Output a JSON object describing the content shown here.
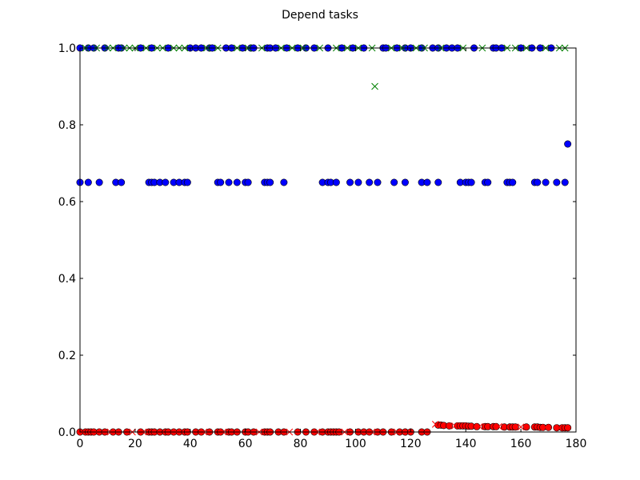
{
  "chart_data": {
    "type": "scatter",
    "title": "Depend tasks",
    "xlabel": "",
    "ylabel": "",
    "xlim": [
      0,
      180
    ],
    "ylim": [
      0.0,
      1.0
    ],
    "xticks": [
      "0",
      "20",
      "40",
      "60",
      "80",
      "100",
      "120",
      "140",
      "160",
      "180"
    ],
    "yticks": [
      "0.0",
      "0.2",
      "0.4",
      "0.6",
      "0.8",
      "1.0"
    ],
    "grid": false,
    "legend": "none",
    "series": [
      {
        "marker": "circle",
        "color": "#0000ff",
        "points": [
          [
            0,
            1.0
          ],
          [
            3,
            1.0
          ],
          [
            5,
            1.0
          ],
          [
            9,
            1.0
          ],
          [
            14,
            1.0
          ],
          [
            15,
            1.0
          ],
          [
            22,
            1.0
          ],
          [
            26,
            1.0
          ],
          [
            32,
            1.0
          ],
          [
            40,
            1.0
          ],
          [
            42,
            1.0
          ],
          [
            44,
            1.0
          ],
          [
            47,
            1.0
          ],
          [
            48,
            1.0
          ],
          [
            53,
            1.0
          ],
          [
            55,
            1.0
          ],
          [
            59,
            1.0
          ],
          [
            62,
            1.0
          ],
          [
            63,
            1.0
          ],
          [
            68,
            1.0
          ],
          [
            69,
            1.0
          ],
          [
            71,
            1.0
          ],
          [
            75,
            1.0
          ],
          [
            79,
            1.0
          ],
          [
            82,
            1.0
          ],
          [
            85,
            1.0
          ],
          [
            90,
            1.0
          ],
          [
            95,
            1.0
          ],
          [
            99,
            1.0
          ],
          [
            103,
            1.0
          ],
          [
            110,
            1.0
          ],
          [
            111,
            1.0
          ],
          [
            115,
            1.0
          ],
          [
            118,
            1.0
          ],
          [
            120,
            1.0
          ],
          [
            124,
            1.0
          ],
          [
            128,
            1.0
          ],
          [
            130,
            1.0
          ],
          [
            133,
            1.0
          ],
          [
            135,
            1.0
          ],
          [
            137,
            1.0
          ],
          [
            143,
            1.0
          ],
          [
            150,
            1.0
          ],
          [
            151,
            1.0
          ],
          [
            153,
            1.0
          ],
          [
            160,
            1.0
          ],
          [
            164,
            1.0
          ],
          [
            167,
            1.0
          ],
          [
            171,
            1.0
          ],
          [
            0,
            0.65
          ],
          [
            3,
            0.65
          ],
          [
            7,
            0.65
          ],
          [
            13,
            0.65
          ],
          [
            15,
            0.65
          ],
          [
            25,
            0.65
          ],
          [
            26,
            0.65
          ],
          [
            27,
            0.65
          ],
          [
            29,
            0.65
          ],
          [
            31,
            0.65
          ],
          [
            34,
            0.65
          ],
          [
            36,
            0.65
          ],
          [
            38,
            0.65
          ],
          [
            39,
            0.65
          ],
          [
            50,
            0.65
          ],
          [
            51,
            0.65
          ],
          [
            54,
            0.65
          ],
          [
            57,
            0.65
          ],
          [
            60,
            0.65
          ],
          [
            61,
            0.65
          ],
          [
            67,
            0.65
          ],
          [
            68,
            0.65
          ],
          [
            69,
            0.65
          ],
          [
            74,
            0.65
          ],
          [
            88,
            0.65
          ],
          [
            90,
            0.65
          ],
          [
            91,
            0.65
          ],
          [
            93,
            0.65
          ],
          [
            98,
            0.65
          ],
          [
            101,
            0.65
          ],
          [
            105,
            0.65
          ],
          [
            108,
            0.65
          ],
          [
            114,
            0.65
          ],
          [
            118,
            0.65
          ],
          [
            124,
            0.65
          ],
          [
            126,
            0.65
          ],
          [
            130,
            0.65
          ],
          [
            138,
            0.65
          ],
          [
            140,
            0.65
          ],
          [
            141,
            0.65
          ],
          [
            142,
            0.65
          ],
          [
            147,
            0.65
          ],
          [
            148,
            0.65
          ],
          [
            155,
            0.65
          ],
          [
            156,
            0.65
          ],
          [
            157,
            0.65
          ],
          [
            165,
            0.65
          ],
          [
            166,
            0.65
          ],
          [
            169,
            0.65
          ],
          [
            173,
            0.65
          ],
          [
            176,
            0.65
          ],
          [
            177,
            0.75
          ]
        ]
      },
      {
        "marker": "x",
        "color": "#008000",
        "points": [
          [
            2,
            1.0
          ],
          [
            6,
            1.0
          ],
          [
            10,
            1.0
          ],
          [
            12,
            1.0
          ],
          [
            16,
            1.0
          ],
          [
            18,
            1.0
          ],
          [
            20,
            1.0
          ],
          [
            24,
            1.0
          ],
          [
            28,
            1.0
          ],
          [
            30,
            1.0
          ],
          [
            34,
            1.0
          ],
          [
            36,
            1.0
          ],
          [
            38,
            1.0
          ],
          [
            46,
            1.0
          ],
          [
            50,
            1.0
          ],
          [
            57,
            1.0
          ],
          [
            61,
            1.0
          ],
          [
            66,
            1.0
          ],
          [
            73,
            1.0
          ],
          [
            77,
            1.0
          ],
          [
            81,
            1.0
          ],
          [
            87,
            1.0
          ],
          [
            93,
            1.0
          ],
          [
            97,
            1.0
          ],
          [
            101,
            1.0
          ],
          [
            106,
            1.0
          ],
          [
            113,
            1.0
          ],
          [
            117,
            1.0
          ],
          [
            122,
            1.0
          ],
          [
            125,
            1.0
          ],
          [
            131,
            1.0
          ],
          [
            139,
            1.0
          ],
          [
            146,
            1.0
          ],
          [
            155,
            1.0
          ],
          [
            158,
            1.0
          ],
          [
            162,
            1.0
          ],
          [
            169,
            1.0
          ],
          [
            174,
            1.0
          ],
          [
            176,
            1.0
          ],
          [
            107,
            0.9
          ]
        ]
      },
      {
        "marker": "circle",
        "color": "#ff0000",
        "points": [
          [
            0,
            0.0
          ],
          [
            2,
            0.0
          ],
          [
            3,
            0.0
          ],
          [
            4,
            0.0
          ],
          [
            5,
            0.0
          ],
          [
            7,
            0.0
          ],
          [
            9,
            0.0
          ],
          [
            12,
            0.0
          ],
          [
            14,
            0.0
          ],
          [
            17,
            0.0
          ],
          [
            22,
            0.0
          ],
          [
            25,
            0.0
          ],
          [
            26,
            0.0
          ],
          [
            27,
            0.0
          ],
          [
            29,
            0.0
          ],
          [
            31,
            0.0
          ],
          [
            32,
            0.0
          ],
          [
            34,
            0.0
          ],
          [
            36,
            0.0
          ],
          [
            38,
            0.0
          ],
          [
            39,
            0.0
          ],
          [
            42,
            0.0
          ],
          [
            44,
            0.0
          ],
          [
            47,
            0.0
          ],
          [
            50,
            0.0
          ],
          [
            51,
            0.0
          ],
          [
            54,
            0.0
          ],
          [
            55,
            0.0
          ],
          [
            57,
            0.0
          ],
          [
            60,
            0.0
          ],
          [
            61,
            0.0
          ],
          [
            63,
            0.0
          ],
          [
            67,
            0.0
          ],
          [
            68,
            0.0
          ],
          [
            69,
            0.0
          ],
          [
            72,
            0.0
          ],
          [
            74,
            0.0
          ],
          [
            79,
            0.0
          ],
          [
            82,
            0.0
          ],
          [
            85,
            0.0
          ],
          [
            88,
            0.0
          ],
          [
            90,
            0.0
          ],
          [
            91,
            0.0
          ],
          [
            92,
            0.0
          ],
          [
            93,
            0.0
          ],
          [
            94,
            0.0
          ],
          [
            98,
            0.0
          ],
          [
            101,
            0.0
          ],
          [
            103,
            0.0
          ],
          [
            105,
            0.0
          ],
          [
            108,
            0.0
          ],
          [
            110,
            0.0
          ],
          [
            113,
            0.0
          ],
          [
            116,
            0.0
          ],
          [
            118,
            0.0
          ],
          [
            120,
            0.0
          ],
          [
            124,
            0.0
          ],
          [
            126,
            0.0
          ],
          [
            130,
            0.018
          ],
          [
            131,
            0.018
          ],
          [
            132,
            0.017
          ],
          [
            134,
            0.016
          ],
          [
            137,
            0.016
          ],
          [
            138,
            0.016
          ],
          [
            139,
            0.016
          ],
          [
            140,
            0.016
          ],
          [
            141,
            0.015
          ],
          [
            142,
            0.015
          ],
          [
            144,
            0.014
          ],
          [
            147,
            0.014
          ],
          [
            148,
            0.014
          ],
          [
            150,
            0.014
          ],
          [
            151,
            0.014
          ],
          [
            154,
            0.013
          ],
          [
            156,
            0.013
          ],
          [
            157,
            0.013
          ],
          [
            158,
            0.013
          ],
          [
            162,
            0.013
          ],
          [
            165,
            0.013
          ],
          [
            166,
            0.013
          ],
          [
            167,
            0.012
          ],
          [
            168,
            0.012
          ],
          [
            170,
            0.012
          ],
          [
            173,
            0.011
          ],
          [
            175,
            0.011
          ],
          [
            176,
            0.011
          ],
          [
            177,
            0.011
          ]
        ]
      },
      {
        "marker": "x",
        "color": "#ff0000",
        "points": [
          [
            1,
            0.0
          ],
          [
            6,
            0.0
          ],
          [
            11,
            0.0
          ],
          [
            19,
            0.0
          ],
          [
            23,
            0.0
          ],
          [
            35,
            0.0
          ],
          [
            45,
            0.0
          ],
          [
            52,
            0.0
          ],
          [
            65,
            0.0
          ],
          [
            76,
            0.0
          ],
          [
            86,
            0.0
          ],
          [
            96,
            0.0
          ],
          [
            106,
            0.0
          ],
          [
            115,
            0.0
          ],
          [
            129,
            0.02
          ],
          [
            136,
            0.016
          ],
          [
            145,
            0.014
          ],
          [
            152,
            0.014
          ],
          [
            160,
            0.013
          ],
          [
            169,
            0.012
          ],
          [
            174,
            0.011
          ]
        ]
      }
    ]
  }
}
